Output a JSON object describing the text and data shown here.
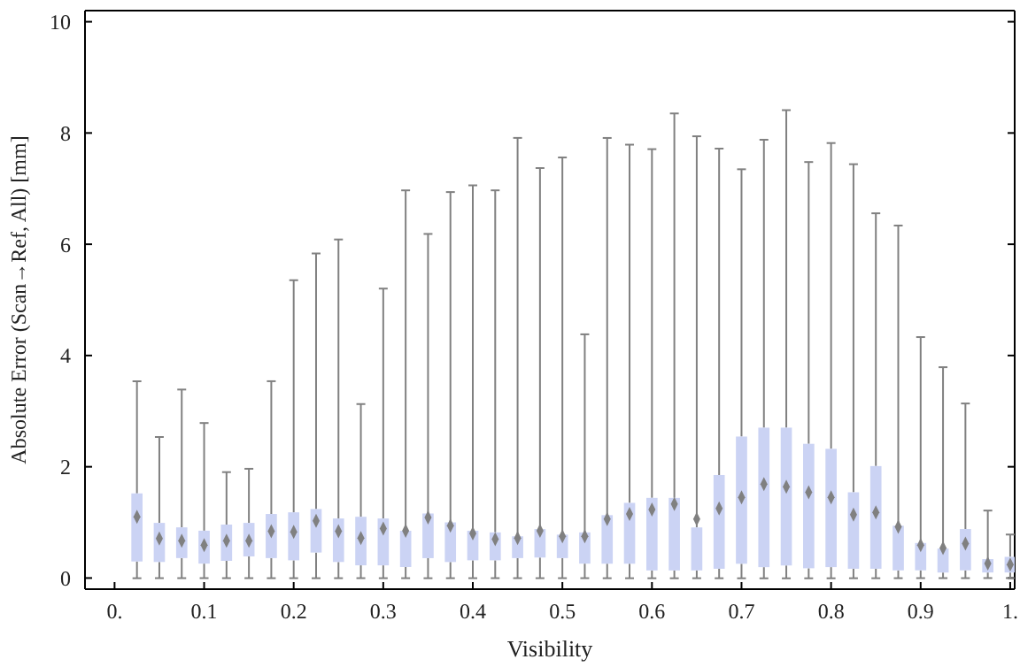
{
  "chart_data": {
    "type": "box",
    "xlabel": "Visibility",
    "ylabel": "Absolute Error (Scan→Ref, All) [mm]",
    "x": [
      0.025,
      0.05,
      0.075,
      0.1,
      0.125,
      0.15,
      0.175,
      0.2,
      0.225,
      0.25,
      0.275,
      0.3,
      0.325,
      0.35,
      0.375,
      0.4,
      0.425,
      0.45,
      0.475,
      0.5,
      0.525,
      0.55,
      0.575,
      0.6,
      0.625,
      0.65,
      0.675,
      0.7,
      0.725,
      0.75,
      0.775,
      0.8,
      0.825,
      0.85,
      0.875,
      0.9,
      0.925,
      0.95,
      0.975,
      1.0
    ],
    "color": "#cbd3f4",
    "boxes": [
      {
        "low": 0,
        "q1": 0.3,
        "mean": 1.1,
        "q3": 1.52,
        "high": 3.53
      },
      {
        "low": 0,
        "q1": 0.29,
        "mean": 0.71,
        "q3": 0.99,
        "high": 2.53
      },
      {
        "low": 0,
        "q1": 0.36,
        "mean": 0.67,
        "q3": 0.91,
        "high": 3.38
      },
      {
        "low": 0,
        "q1": 0.26,
        "mean": 0.59,
        "q3": 0.85,
        "high": 2.78
      },
      {
        "low": 0,
        "q1": 0.31,
        "mean": 0.67,
        "q3": 0.96,
        "high": 1.9
      },
      {
        "low": 0,
        "q1": 0.39,
        "mean": 0.67,
        "q3": 0.99,
        "high": 1.96
      },
      {
        "low": 0,
        "q1": 0.36,
        "mean": 0.84,
        "q3": 1.15,
        "high": 3.53
      },
      {
        "low": 0,
        "q1": 0.32,
        "mean": 0.83,
        "q3": 1.18,
        "high": 5.34
      },
      {
        "low": 0,
        "q1": 0.46,
        "mean": 1.03,
        "q3": 1.24,
        "high": 5.82
      },
      {
        "low": 0,
        "q1": 0.29,
        "mean": 0.84,
        "q3": 1.07,
        "high": 6.07
      },
      {
        "low": 0,
        "q1": 0.23,
        "mean": 0.72,
        "q3": 1.1,
        "high": 3.12
      },
      {
        "low": 0,
        "q1": 0.23,
        "mean": 0.89,
        "q3": 1.07,
        "high": 5.19
      },
      {
        "low": 0,
        "q1": 0.2,
        "mean": 0.85,
        "q3": 0.85,
        "high": 6.95
      },
      {
        "low": 0,
        "q1": 0.36,
        "mean": 1.09,
        "q3": 1.16,
        "high": 6.17
      },
      {
        "low": 0,
        "q1": 0.29,
        "mean": 0.94,
        "q3": 1.0,
        "high": 6.92
      },
      {
        "low": 0,
        "q1": 0.32,
        "mean": 0.8,
        "q3": 0.85,
        "high": 7.04
      },
      {
        "low": 0,
        "q1": 0.32,
        "mean": 0.7,
        "q3": 0.82,
        "high": 6.95
      },
      {
        "low": 0,
        "q1": 0.36,
        "mean": 0.72,
        "q3": 0.75,
        "high": 7.89
      },
      {
        "low": 0,
        "q1": 0.37,
        "mean": 0.85,
        "q3": 0.88,
        "high": 7.35
      },
      {
        "low": 0,
        "q1": 0.36,
        "mean": 0.75,
        "q3": 0.78,
        "high": 7.54
      },
      {
        "low": 0,
        "q1": 0.26,
        "mean": 0.75,
        "q3": 0.82,
        "high": 4.37
      },
      {
        "low": 0,
        "q1": 0.26,
        "mean": 1.06,
        "q3": 1.13,
        "high": 7.89
      },
      {
        "low": 0,
        "q1": 0.26,
        "mean": 1.15,
        "q3": 1.35,
        "high": 7.77
      },
      {
        "low": 0,
        "q1": 0.14,
        "mean": 1.23,
        "q3": 1.44,
        "high": 7.69
      },
      {
        "low": 0,
        "q1": 0.14,
        "mean": 1.33,
        "q3": 1.44,
        "high": 8.33
      },
      {
        "low": 0,
        "q1": 0.14,
        "mean": 1.06,
        "q3": 0.91,
        "high": 7.92
      },
      {
        "low": 0,
        "q1": 0.17,
        "mean": 1.25,
        "q3": 1.85,
        "high": 7.7
      },
      {
        "low": 0,
        "q1": 0.26,
        "mean": 1.45,
        "q3": 2.54,
        "high": 7.33
      },
      {
        "low": 0,
        "q1": 0.2,
        "mean": 1.69,
        "q3": 2.7,
        "high": 7.86
      },
      {
        "low": 0,
        "q1": 0.23,
        "mean": 1.64,
        "q3": 2.7,
        "high": 8.39
      },
      {
        "low": 0,
        "q1": 0.18,
        "mean": 1.54,
        "q3": 2.41,
        "high": 7.46
      },
      {
        "low": 0,
        "q1": 0.2,
        "mean": 1.45,
        "q3": 2.32,
        "high": 7.8
      },
      {
        "low": 0,
        "q1": 0.17,
        "mean": 1.14,
        "q3": 1.54,
        "high": 7.42
      },
      {
        "low": 0,
        "q1": 0.17,
        "mean": 1.18,
        "q3": 2.01,
        "high": 6.54
      },
      {
        "low": 0,
        "q1": 0.14,
        "mean": 0.92,
        "q3": 0.94,
        "high": 6.32
      },
      {
        "low": 0,
        "q1": 0.14,
        "mean": 0.59,
        "q3": 0.63,
        "high": 4.32
      },
      {
        "low": 0,
        "q1": 0.1,
        "mean": 0.54,
        "q3": 0.53,
        "high": 3.78
      },
      {
        "low": 0,
        "q1": 0.14,
        "mean": 0.62,
        "q3": 0.88,
        "high": 3.13
      },
      {
        "low": 0,
        "q1": 0.1,
        "mean": 0.26,
        "q3": 0.34,
        "high": 1.21
      },
      {
        "low": 0,
        "q1": 0.1,
        "mean": 0.24,
        "q3": 0.38,
        "high": 0.78
      }
    ],
    "grid": false,
    "xlim": [
      -0.033,
      1.005
    ],
    "ylim": [
      -0.2,
      10.2
    ],
    "xticks": [
      {
        "value": 0,
        "label": "0."
      },
      0.1,
      0.2,
      0.3,
      0.4,
      0.5,
      0.6,
      0.7,
      0.8,
      0.9,
      {
        "value": 1,
        "label": "1."
      }
    ],
    "yticks": [
      0,
      2,
      4,
      6,
      8,
      10
    ]
  }
}
